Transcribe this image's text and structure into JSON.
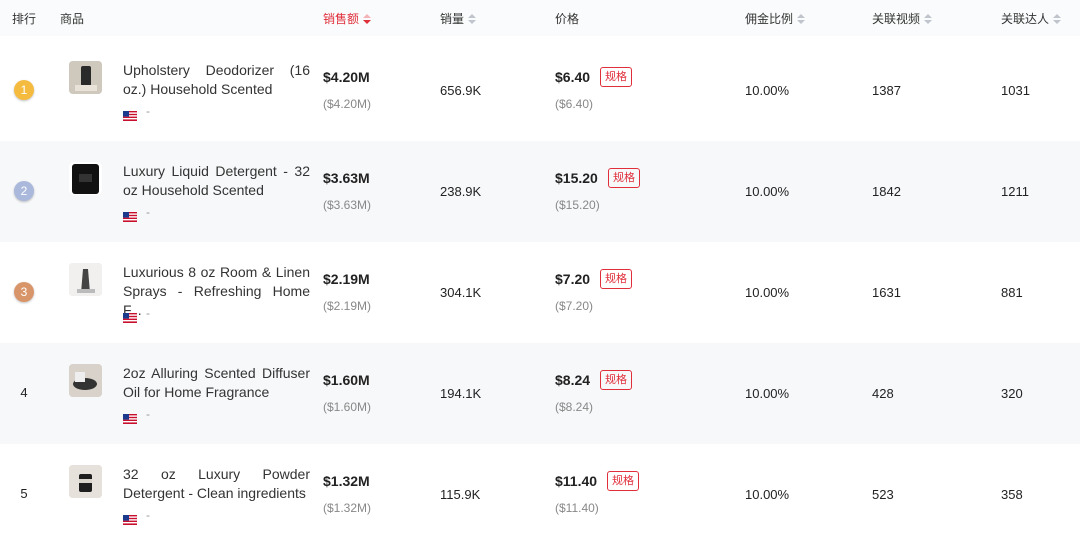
{
  "header": {
    "columns": [
      "排行",
      "商品",
      "销售额",
      "销量",
      "价格",
      "佣金比例",
      "关联视频",
      "关联达人"
    ]
  },
  "table": {
    "rows": [
      {
        "rank": "1",
        "title": "Upholstery Deodorizer (16 oz.) Household Scented",
        "region": "-",
        "sales": "$4.20M",
        "sales_sub": "($4.20M)",
        "volume": "656.9K",
        "price": "$6.40",
        "spec": "规格",
        "price_sub": "($6.40)",
        "commission": "10.00%",
        "videos": "1387",
        "creators": "1031"
      },
      {
        "rank": "2",
        "title": "Luxury Liquid Detergent - 32 oz Household Scented",
        "region": "-",
        "sales": "$3.63M",
        "sales_sub": "($3.63M)",
        "volume": "238.9K",
        "price": "$15.20",
        "spec": "规格",
        "price_sub": "($15.20)",
        "commission": "10.00%",
        "videos": "1842",
        "creators": "1211"
      },
      {
        "rank": "3",
        "title": "Luxurious 8 oz Room & Linen Sprays - Refreshing Home F...",
        "region": "-",
        "sales": "$2.19M",
        "sales_sub": "($2.19M)",
        "volume": "304.1K",
        "price": "$7.20",
        "spec": "规格",
        "price_sub": "($7.20)",
        "commission": "10.00%",
        "videos": "1631",
        "creators": "881"
      },
      {
        "rank": "4",
        "title": "2oz Alluring Scented Diffuser Oil for Home Fragrance",
        "region": "-",
        "sales": "$1.60M",
        "sales_sub": "($1.60M)",
        "volume": "194.1K",
        "price": "$8.24",
        "spec": "规格",
        "price_sub": "($8.24)",
        "commission": "10.00%",
        "videos": "428",
        "creators": "320"
      },
      {
        "rank": "5",
        "title": "32 oz Luxury Powder Detergent - Clean ingredients",
        "region": "-",
        "sales": "$1.32M",
        "sales_sub": "($1.32M)",
        "volume": "115.9K",
        "price": "$11.40",
        "spec": "规格",
        "price_sub": "($11.40)",
        "commission": "10.00%",
        "videos": "523",
        "creators": "358"
      }
    ]
  }
}
